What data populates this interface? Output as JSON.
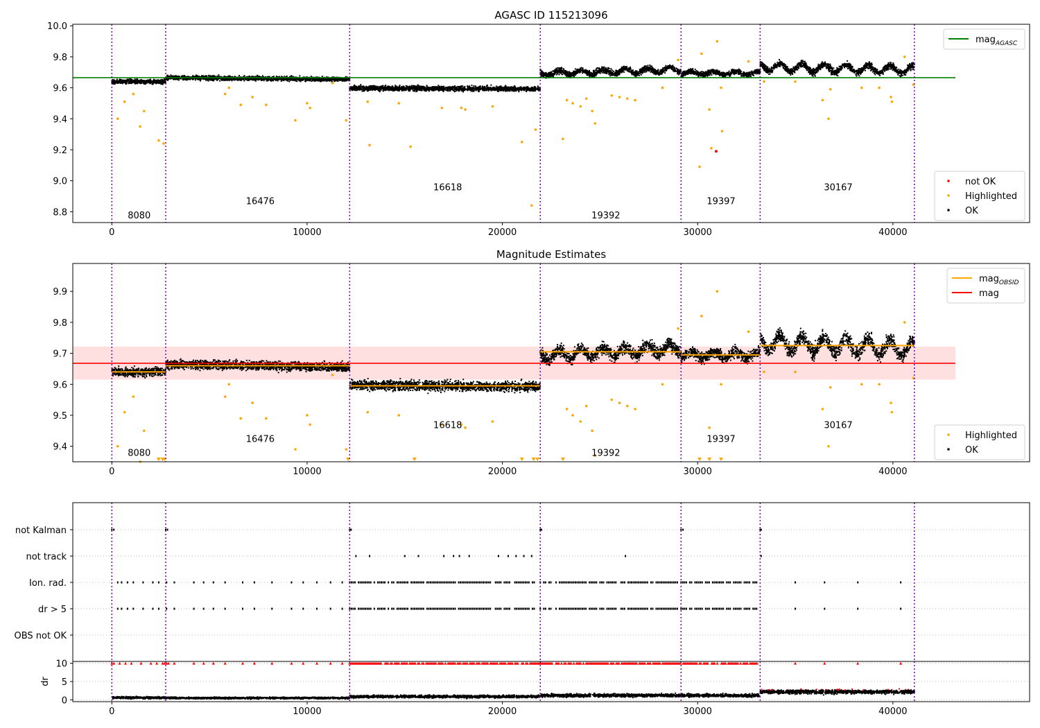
{
  "chart_data": [
    {
      "type": "scatter",
      "title": "AGASC ID 115213096",
      "xlim": [
        -2000,
        47000
      ],
      "ylim": [
        8.73,
        10.01
      ],
      "xticks": [
        0,
        10000,
        20000,
        30000,
        40000
      ],
      "xtick_labels": [
        "0",
        "10000",
        "20000",
        "30000",
        "40000"
      ],
      "yticks": [
        8.8,
        9.0,
        9.2,
        9.4,
        9.6,
        9.8,
        10.0
      ],
      "ytick_labels": [
        "8.8",
        "9.0",
        "9.2",
        "9.4",
        "9.6",
        "9.8",
        "10.0"
      ],
      "vlines": [
        0,
        2760,
        12180,
        21940,
        29150,
        33200,
        41100
      ],
      "obsids": [
        {
          "label": "8080",
          "x": 1400,
          "y": 8.78
        },
        {
          "label": "16476",
          "x": 7600,
          "y": 8.87
        },
        {
          "label": "16618",
          "x": 17200,
          "y": 8.96
        },
        {
          "label": "19392",
          "x": 25300,
          "y": 8.78
        },
        {
          "label": "19397",
          "x": 31200,
          "y": 8.87
        },
        {
          "label": "30167",
          "x": 37200,
          "y": 8.96
        }
      ],
      "segments": [
        {
          "x0": 0,
          "x1": 2760,
          "center": 9.64,
          "spread": 0.025,
          "trend": 0.0,
          "wave": 0.0
        },
        {
          "x0": 2760,
          "x1": 12180,
          "center": 9.66,
          "spread": 0.025,
          "trend": -0.01,
          "wave": 0.0
        },
        {
          "x0": 12180,
          "x1": 21940,
          "center": 9.595,
          "spread": 0.028,
          "trend": -0.005,
          "wave": 0.0
        },
        {
          "x0": 21940,
          "x1": 29150,
          "center": 9.705,
          "spread": 0.035,
          "trend": 0.025,
          "wave": 0.015
        },
        {
          "x0": 29150,
          "x1": 33200,
          "center": 9.695,
          "spread": 0.03,
          "trend": 0.0,
          "wave": 0.01
        },
        {
          "x0": 33200,
          "x1": 41100,
          "center": 9.725,
          "spread": 0.04,
          "trend": -0.02,
          "wave": 0.025
        }
      ],
      "highlighted": [
        [
          300,
          9.4
        ],
        [
          650,
          9.51
        ],
        [
          1100,
          9.56
        ],
        [
          1450,
          9.35
        ],
        [
          1650,
          9.45
        ],
        [
          2400,
          9.26
        ],
        [
          2650,
          9.24
        ],
        [
          5800,
          9.56
        ],
        [
          6000,
          9.6
        ],
        [
          6600,
          9.49
        ],
        [
          7200,
          9.54
        ],
        [
          7900,
          9.49
        ],
        [
          9400,
          9.39
        ],
        [
          10000,
          9.5
        ],
        [
          10150,
          9.47
        ],
        [
          11300,
          9.63
        ],
        [
          12000,
          9.39
        ],
        [
          13100,
          9.51
        ],
        [
          13200,
          9.23
        ],
        [
          14700,
          9.5
        ],
        [
          15300,
          9.22
        ],
        [
          16900,
          9.47
        ],
        [
          17900,
          9.47
        ],
        [
          18100,
          9.46
        ],
        [
          19500,
          9.48
        ],
        [
          21000,
          9.25
        ],
        [
          21500,
          8.84
        ],
        [
          21700,
          9.33
        ],
        [
          23100,
          9.27
        ],
        [
          23300,
          9.52
        ],
        [
          23600,
          9.5
        ],
        [
          24000,
          9.48
        ],
        [
          24300,
          9.53
        ],
        [
          24600,
          9.45
        ],
        [
          24750,
          9.37
        ],
        [
          25600,
          9.55
        ],
        [
          26000,
          9.54
        ],
        [
          26400,
          9.53
        ],
        [
          26800,
          9.52
        ],
        [
          28200,
          9.6
        ],
        [
          29000,
          9.78
        ],
        [
          30100,
          9.09
        ],
        [
          30200,
          9.82
        ],
        [
          30600,
          9.46
        ],
        [
          30700,
          9.21
        ],
        [
          31000,
          9.9
        ],
        [
          31200,
          9.6
        ],
        [
          31250,
          9.32
        ],
        [
          32600,
          9.77
        ],
        [
          33400,
          9.64
        ],
        [
          35000,
          9.64
        ],
        [
          36400,
          9.52
        ],
        [
          36700,
          9.4
        ],
        [
          36800,
          9.59
        ],
        [
          38400,
          9.6
        ],
        [
          39300,
          9.6
        ],
        [
          39900,
          9.54
        ],
        [
          39950,
          9.51
        ],
        [
          40600,
          9.8
        ],
        [
          41050,
          9.62
        ]
      ],
      "not_ok": [
        [
          30950,
          9.19
        ]
      ],
      "ref_line": {
        "name": "mag_AGASC",
        "value": 9.665,
        "x0": -2000,
        "x1": 43200,
        "color": "#008000"
      },
      "legend_top": [
        {
          "label": "mag",
          "sub": "AGASC",
          "color": "#008000"
        }
      ],
      "legend_bottom": [
        {
          "label": "not OK",
          "color": "#ff0000"
        },
        {
          "label": "Highlighted",
          "color": "#ffa500"
        },
        {
          "label": "OK",
          "color": "#000000"
        }
      ]
    },
    {
      "type": "scatter",
      "title": "Magnitude Estimates",
      "xlim": [
        -2000,
        47000
      ],
      "ylim": [
        9.35,
        9.99
      ],
      "xticks": [
        0,
        10000,
        20000,
        30000,
        40000
      ],
      "xtick_labels": [
        "0",
        "10000",
        "20000",
        "30000",
        "40000"
      ],
      "yticks": [
        9.4,
        9.5,
        9.6,
        9.7,
        9.8,
        9.9
      ],
      "ytick_labels": [
        "9.4",
        "9.5",
        "9.6",
        "9.7",
        "9.8",
        "9.9"
      ],
      "vlines": [
        0,
        2760,
        12180,
        21940,
        29150,
        33200,
        41100
      ],
      "obsids": [
        {
          "label": "8080",
          "x": 1400,
          "y": 9.38
        },
        {
          "label": "16476",
          "x": 7600,
          "y": 9.425
        },
        {
          "label": "16618",
          "x": 17200,
          "y": 9.47
        },
        {
          "label": "19392",
          "x": 25300,
          "y": 9.38
        },
        {
          "label": "19397",
          "x": 31200,
          "y": 9.425
        },
        {
          "label": "30167",
          "x": 37200,
          "y": 9.47
        }
      ],
      "obsid_mags": [
        9.64,
        9.66,
        9.595,
        9.705,
        9.695,
        9.725
      ],
      "mag": {
        "value": 9.668,
        "band": [
          9.615,
          9.722
        ],
        "x0": -2000,
        "x1": 43200
      },
      "offscale_low": [
        2400,
        2600,
        2700,
        12100,
        15500,
        21000,
        21600,
        21800,
        23100,
        30100,
        30600,
        31200
      ],
      "legend_top": [
        {
          "label": "mag",
          "sub": "OBSID",
          "color": "#ffa500"
        },
        {
          "label": "mag",
          "sub": "",
          "color": "#ff0000"
        }
      ],
      "legend_bottom": [
        {
          "label": "Highlighted",
          "color": "#ffa500"
        },
        {
          "label": "OK",
          "color": "#000000"
        }
      ]
    },
    {
      "type": "scatter",
      "title": "",
      "xlim": [
        -2000,
        47000
      ],
      "categories": [
        "not Kalman",
        "not track",
        "Ion. rad.",
        "dr > 5",
        "OBS not OK"
      ],
      "vlines": [
        0,
        2760,
        12180,
        21940,
        29150,
        33200,
        41100
      ],
      "flag_x": {
        "not Kalman": [
          0,
          100,
          2760,
          2850,
          12180,
          12250,
          21940,
          22000,
          29150,
          29250,
          33200,
          33250
        ],
        "not track": [
          12500,
          13200,
          15000,
          15700,
          17000,
          17500,
          17800,
          18300,
          19800,
          20300,
          20700,
          21100,
          21500,
          26300,
          33250
        ],
        "Ion. rad.": [
          300,
          500,
          800,
          1100,
          1600,
          2100,
          2400,
          2800,
          3200,
          4200,
          4700,
          5200,
          5800,
          6700,
          7300,
          8200,
          9200,
          9800,
          10500,
          11200,
          11800,
          35000,
          36500,
          38200,
          40400
        ],
        "dr > 5": [
          300,
          500,
          800,
          1100,
          1600,
          2100,
          2400,
          2800,
          3200,
          4200,
          4700,
          5200,
          5800,
          6700,
          7300,
          8200,
          9200,
          9800,
          10500,
          11200,
          11800,
          35000,
          36500,
          38200,
          40400
        ],
        "OBS not OK": []
      },
      "dense_ranges": [
        [
          12180,
          21700
        ],
        [
          21940,
          29000
        ],
        [
          29150,
          33100
        ]
      ]
    },
    {
      "type": "scatter",
      "title": "",
      "ylabel": "dr",
      "xlim": [
        -2000,
        47000
      ],
      "ylim": [
        -0.5,
        10.5
      ],
      "yticks": [
        0,
        5,
        10
      ],
      "ytick_labels": [
        "0",
        "5",
        "10"
      ],
      "xticks": [
        0,
        10000,
        20000,
        30000,
        40000
      ],
      "xtick_labels": [
        "0",
        "10000",
        "20000",
        "30000",
        "40000"
      ],
      "vlines": [
        0,
        2760,
        12180,
        21940,
        29150,
        33200,
        41100
      ],
      "clipped_value": 10,
      "segments": [
        {
          "x0": 0,
          "x1": 2760,
          "level": 0.6,
          "spread": 0.45
        },
        {
          "x0": 2760,
          "x1": 12180,
          "level": 0.5,
          "spread": 0.4
        },
        {
          "x0": 12180,
          "x1": 21940,
          "level": 0.9,
          "spread": 0.6
        },
        {
          "x0": 21940,
          "x1": 29150,
          "level": 1.2,
          "spread": 0.7
        },
        {
          "x0": 29150,
          "x1": 33200,
          "level": 1.2,
          "spread": 0.7
        },
        {
          "x0": 33200,
          "x1": 41100,
          "level": 2.2,
          "spread": 0.9
        }
      ]
    }
  ]
}
